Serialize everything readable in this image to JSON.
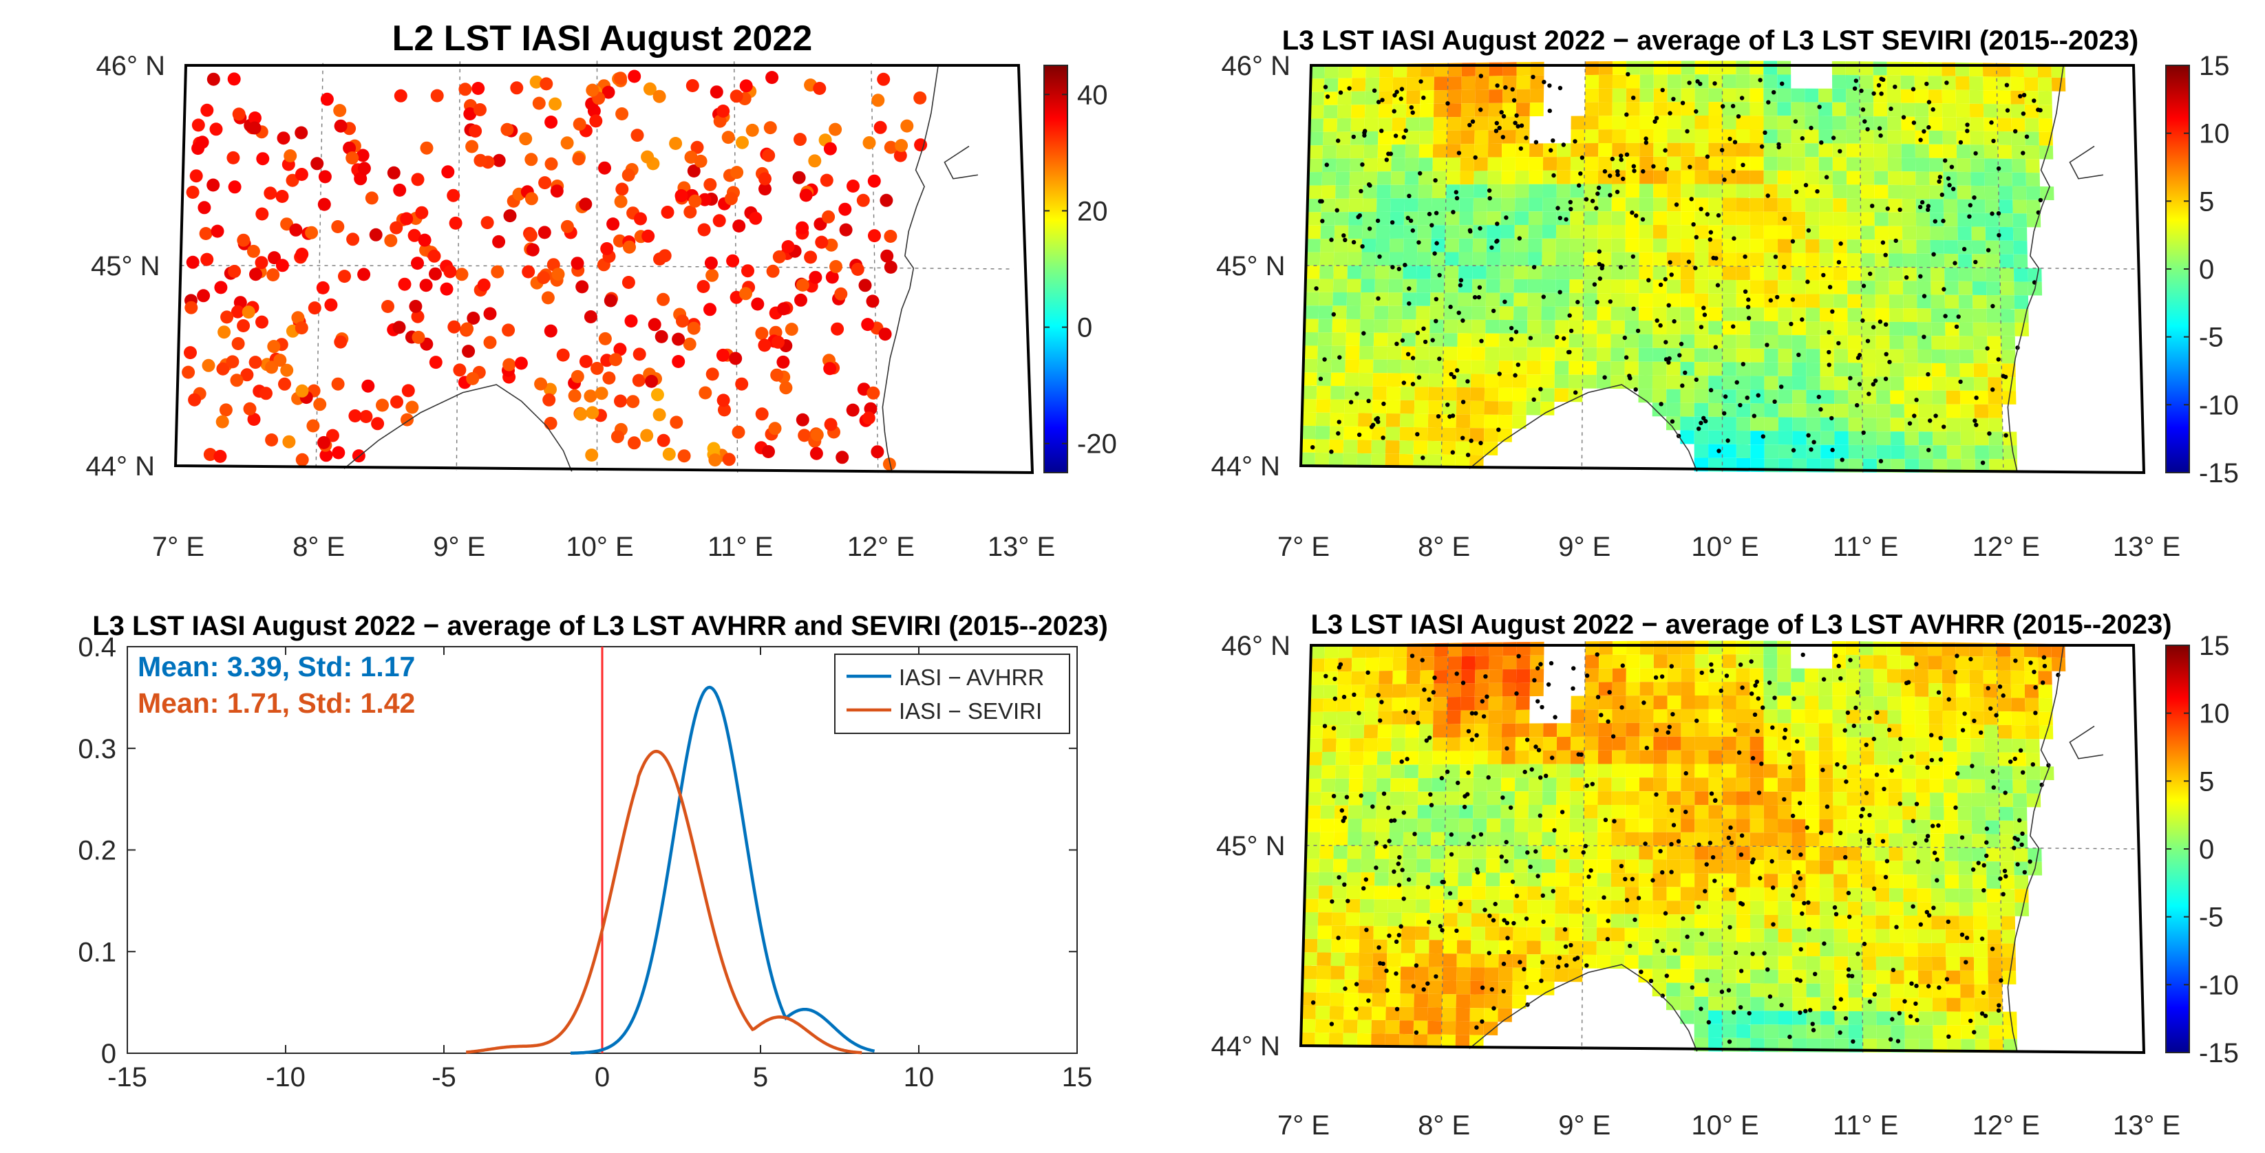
{
  "chart_data": [
    {
      "type": "scatter-map",
      "title": "L2 LST IASI August 2022",
      "lat_ticks": [
        "46",
        "45",
        "44"
      ],
      "lon_ticks": [
        "7",
        "8",
        "9",
        "10",
        "11",
        "12",
        "13"
      ],
      "lat_suffix": "N",
      "lon_suffix": "E",
      "degree": "°",
      "lat_range": [
        44,
        46
      ],
      "lon_range": [
        7,
        13
      ],
      "colorbar": {
        "range": [
          -25,
          45
        ],
        "ticks": [
          "40",
          "20",
          "0",
          "-20"
        ],
        "tick_values": [
          40,
          20,
          0,
          -20
        ],
        "colormap": "jet"
      },
      "description": "Point-wise L2 land surface temperature, mostly 20 to 40"
    },
    {
      "type": "heatmap-map",
      "title": "L3 LST IASI August 2022 − average of L3 LST SEVIRI (2015--2023)",
      "lat_ticks": [
        "46",
        "45",
        "44"
      ],
      "lon_ticks": [
        "7",
        "8",
        "9",
        "10",
        "11",
        "12",
        "13"
      ],
      "lat_suffix": "N",
      "lon_suffix": "E",
      "degree": "°",
      "lat_range": [
        44,
        46
      ],
      "lon_range": [
        7,
        13
      ],
      "colorbar": {
        "range": [
          -15,
          15
        ],
        "ticks": [
          "15",
          "10",
          "5",
          "0",
          "-5",
          "-10",
          "-15"
        ],
        "tick_values": [
          15,
          10,
          5,
          0,
          -5,
          -10,
          -15
        ],
        "colormap": "jet"
      },
      "typical_value": 1.7
    },
    {
      "type": "line",
      "title": "L3 LST IASI August 2022 − average of L3 LST AVHRR and SEVIRI (2015--2023)",
      "xlim": [
        -15,
        15
      ],
      "ylim": [
        0,
        0.4
      ],
      "x_ticks": [
        "-15",
        "-10",
        "-5",
        "0",
        "5",
        "10",
        "15"
      ],
      "x_tick_values": [
        -15,
        -10,
        -5,
        0,
        5,
        10,
        15
      ],
      "y_ticks": [
        "0.4",
        "0.3",
        "0.2",
        "0.1",
        "0"
      ],
      "y_tick_values": [
        0.4,
        0.3,
        0.2,
        0.1,
        0
      ],
      "vline_x": 0,
      "vline_color": "#ff2a2a",
      "series": [
        {
          "name": "IASI − AVHRR",
          "color": "#0072bd",
          "mean": 3.39,
          "std": 1.17,
          "peak": 0.36,
          "x_start": -1.0,
          "x_end": 8.6,
          "annotation": "Mean: 3.39, Std: 1.17"
        },
        {
          "name": "IASI − SEVIRI",
          "color": "#d95319",
          "mean": 1.71,
          "std": 1.42,
          "peak": 0.297,
          "x_start": -4.3,
          "x_end": 8.2,
          "annotation": "Mean: 1.71, Std: 1.42"
        }
      ],
      "legend_location": "top-right"
    },
    {
      "type": "heatmap-map",
      "title": "L3 LST IASI August 2022 − average of L3 LST AVHRR (2015--2023)",
      "lat_ticks": [
        "46",
        "45",
        "44"
      ],
      "lon_ticks": [
        "7",
        "8",
        "9",
        "10",
        "11",
        "12",
        "13"
      ],
      "lat_suffix": "N",
      "lon_suffix": "E",
      "degree": "°",
      "lat_range": [
        44,
        46
      ],
      "lon_range": [
        7,
        13
      ],
      "colorbar": {
        "range": [
          -15,
          15
        ],
        "ticks": [
          "15",
          "10",
          "5",
          "0",
          "-5",
          "-10",
          "-15"
        ],
        "tick_values": [
          15,
          10,
          5,
          0,
          -5,
          -10,
          -15
        ],
        "colormap": "jet"
      },
      "typical_value": 3.4
    }
  ]
}
